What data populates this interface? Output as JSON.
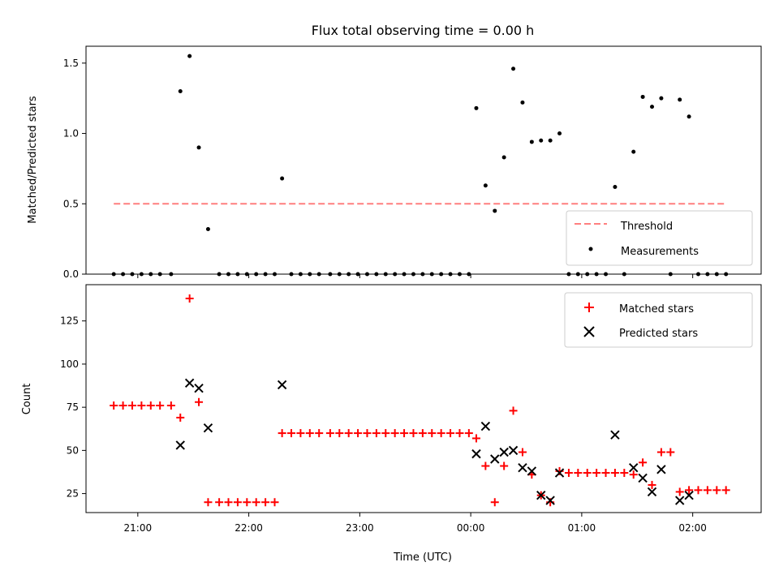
{
  "chart_data": [
    {
      "type": "scatter",
      "title": "Flux total observing time = 0.00 h",
      "xlabel": "",
      "ylabel": "Matched/Predicted stars",
      "xlim": [
        "20:32",
        "02:37"
      ],
      "ylim": [
        0,
        1.62
      ],
      "yticks": [
        0.0,
        0.5,
        1.0,
        1.5
      ],
      "ytick_labels": [
        "0.0",
        "0.5",
        "1.0",
        "1.5"
      ],
      "legend_position": "lower right",
      "series": [
        {
          "name": "Threshold",
          "kind": "dashed-line",
          "color": "#ff7f7f",
          "x": [
            "20:47",
            "02:18"
          ],
          "y": [
            0.5,
            0.5
          ]
        },
        {
          "name": "Measurements",
          "kind": "dot",
          "color": "#000000",
          "points": [
            [
              "20:47",
              0.0
            ],
            [
              "20:52",
              0.0
            ],
            [
              "20:57",
              0.0
            ],
            [
              "21:02",
              0.0
            ],
            [
              "21:07",
              0.0
            ],
            [
              "21:12",
              0.0
            ],
            [
              "21:18",
              0.0
            ],
            [
              "21:23",
              1.3
            ],
            [
              "21:28",
              1.55
            ],
            [
              "21:33",
              0.9
            ],
            [
              "21:38",
              0.32
            ],
            [
              "21:44",
              0.0
            ],
            [
              "21:49",
              0.0
            ],
            [
              "21:54",
              0.0
            ],
            [
              "21:59",
              0.0
            ],
            [
              "22:04",
              0.0
            ],
            [
              "22:09",
              0.0
            ],
            [
              "22:14",
              0.0
            ],
            [
              "22:18",
              0.68
            ],
            [
              "22:23",
              0.0
            ],
            [
              "22:28",
              0.0
            ],
            [
              "22:33",
              0.0
            ],
            [
              "22:38",
              0.0
            ],
            [
              "22:44",
              0.0
            ],
            [
              "22:49",
              0.0
            ],
            [
              "22:54",
              0.0
            ],
            [
              "22:59",
              0.0
            ],
            [
              "23:04",
              0.0
            ],
            [
              "23:09",
              0.0
            ],
            [
              "23:14",
              0.0
            ],
            [
              "23:19",
              0.0
            ],
            [
              "23:24",
              0.0
            ],
            [
              "23:29",
              0.0
            ],
            [
              "23:34",
              0.0
            ],
            [
              "23:39",
              0.0
            ],
            [
              "23:44",
              0.0
            ],
            [
              "23:49",
              0.0
            ],
            [
              "23:54",
              0.0
            ],
            [
              "23:59",
              0.0
            ],
            [
              "00:03",
              1.18
            ],
            [
              "00:08",
              0.63
            ],
            [
              "00:13",
              0.45
            ],
            [
              "00:18",
              0.83
            ],
            [
              "00:23",
              1.46
            ],
            [
              "00:28",
              1.22
            ],
            [
              "00:33",
              0.94
            ],
            [
              "00:38",
              0.95
            ],
            [
              "00:43",
              0.95
            ],
            [
              "00:48",
              1.0
            ],
            [
              "00:53",
              0.0
            ],
            [
              "00:58",
              0.0
            ],
            [
              "01:03",
              0.0
            ],
            [
              "01:08",
              0.0
            ],
            [
              "01:13",
              0.0
            ],
            [
              "01:18",
              0.62
            ],
            [
              "01:23",
              0.0
            ],
            [
              "01:28",
              0.87
            ],
            [
              "01:33",
              1.26
            ],
            [
              "01:38",
              1.19
            ],
            [
              "01:43",
              1.25
            ],
            [
              "01:48",
              0.0
            ],
            [
              "01:53",
              1.24
            ],
            [
              "01:58",
              1.12
            ],
            [
              "02:03",
              0.0
            ],
            [
              "02:08",
              0.0
            ],
            [
              "02:13",
              0.0
            ],
            [
              "02:18",
              0.0
            ]
          ]
        }
      ]
    },
    {
      "type": "scatter",
      "title": "",
      "xlabel": "Time (UTC)",
      "ylabel": "Count",
      "xlim": [
        "20:32",
        "02:37"
      ],
      "ylim": [
        14,
        146
      ],
      "xticks": [
        "21:00",
        "22:00",
        "23:00",
        "00:00",
        "01:00",
        "02:00"
      ],
      "yticks": [
        25,
        50,
        75,
        100,
        125
      ],
      "ytick_labels": [
        "25",
        "50",
        "75",
        "100",
        "125"
      ],
      "legend_position": "upper right",
      "series": [
        {
          "name": "Matched stars",
          "kind": "plus",
          "color": "#ff0000",
          "points": [
            [
              "20:47",
              76
            ],
            [
              "20:52",
              76
            ],
            [
              "20:57",
              76
            ],
            [
              "21:02",
              76
            ],
            [
              "21:07",
              76
            ],
            [
              "21:12",
              76
            ],
            [
              "21:18",
              76
            ],
            [
              "21:23",
              69
            ],
            [
              "21:28",
              138
            ],
            [
              "21:33",
              78
            ],
            [
              "21:38",
              20
            ],
            [
              "21:44",
              20
            ],
            [
              "21:49",
              20
            ],
            [
              "21:54",
              20
            ],
            [
              "21:59",
              20
            ],
            [
              "22:04",
              20
            ],
            [
              "22:09",
              20
            ],
            [
              "22:14",
              20
            ],
            [
              "22:18",
              60
            ],
            [
              "22:23",
              60
            ],
            [
              "22:28",
              60
            ],
            [
              "22:33",
              60
            ],
            [
              "22:38",
              60
            ],
            [
              "22:44",
              60
            ],
            [
              "22:49",
              60
            ],
            [
              "22:54",
              60
            ],
            [
              "22:59",
              60
            ],
            [
              "23:04",
              60
            ],
            [
              "23:09",
              60
            ],
            [
              "23:14",
              60
            ],
            [
              "23:19",
              60
            ],
            [
              "23:24",
              60
            ],
            [
              "23:29",
              60
            ],
            [
              "23:34",
              60
            ],
            [
              "23:39",
              60
            ],
            [
              "23:44",
              60
            ],
            [
              "23:49",
              60
            ],
            [
              "23:54",
              60
            ],
            [
              "23:59",
              60
            ],
            [
              "00:03",
              57
            ],
            [
              "00:08",
              41
            ],
            [
              "00:13",
              20
            ],
            [
              "00:18",
              41
            ],
            [
              "00:23",
              73
            ],
            [
              "00:28",
              49
            ],
            [
              "00:33",
              36
            ],
            [
              "00:38",
              24
            ],
            [
              "00:43",
              20
            ],
            [
              "00:48",
              38
            ],
            [
              "00:53",
              37
            ],
            [
              "00:58",
              37
            ],
            [
              "01:03",
              37
            ],
            [
              "01:08",
              37
            ],
            [
              "01:13",
              37
            ],
            [
              "01:18",
              37
            ],
            [
              "01:23",
              37
            ],
            [
              "01:28",
              36
            ],
            [
              "01:33",
              43
            ],
            [
              "01:38",
              30
            ],
            [
              "01:43",
              49
            ],
            [
              "01:48",
              49
            ],
            [
              "01:53",
              26
            ],
            [
              "01:58",
              27
            ],
            [
              "02:03",
              27
            ],
            [
              "02:08",
              27
            ],
            [
              "02:13",
              27
            ],
            [
              "02:18",
              27
            ]
          ]
        },
        {
          "name": "Predicted stars",
          "kind": "x",
          "color": "#000000",
          "points": [
            [
              "21:23",
              53
            ],
            [
              "21:28",
              89
            ],
            [
              "21:33",
              86
            ],
            [
              "21:38",
              63
            ],
            [
              "22:18",
              88
            ],
            [
              "00:03",
              48
            ],
            [
              "00:08",
              64
            ],
            [
              "00:13",
              45
            ],
            [
              "00:18",
              49
            ],
            [
              "00:23",
              50
            ],
            [
              "00:28",
              40
            ],
            [
              "00:33",
              38
            ],
            [
              "00:38",
              24
            ],
            [
              "00:43",
              21
            ],
            [
              "00:48",
              37
            ],
            [
              "01:18",
              59
            ],
            [
              "01:28",
              40
            ],
            [
              "01:33",
              34
            ],
            [
              "01:38",
              26
            ],
            [
              "01:43",
              39
            ],
            [
              "01:53",
              21
            ],
            [
              "01:58",
              24
            ]
          ]
        }
      ]
    }
  ]
}
